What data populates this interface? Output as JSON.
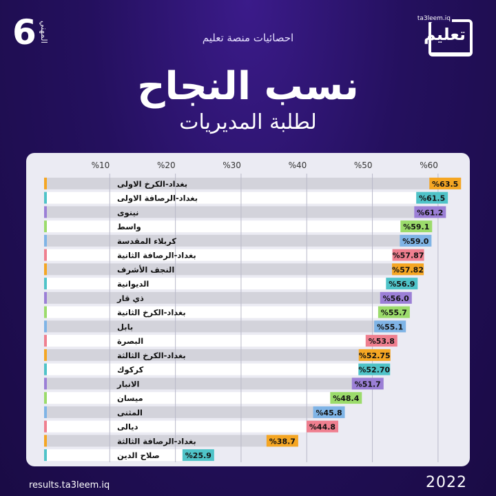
{
  "header": {
    "grade_number": "6",
    "grade_label": "المهني",
    "subtitle": "احصائيات منصة تعليم",
    "logo_text": "تعليم",
    "logo_small": "ta3leem.iq",
    "title": "نسب النجاح",
    "title_line2": "لطلبة المديريات"
  },
  "footer": {
    "url": "results.ta3leem.iq",
    "year": "2022"
  },
  "colors": {
    "background": "#24105e",
    "panel": "#ebebf3",
    "row_dark": "#d3d3db",
    "row_light": "#ffffff",
    "grid": "#b9b9c9"
  },
  "chart_data": {
    "type": "bar",
    "orientation": "horizontal",
    "xlim": [
      0,
      64
    ],
    "ticks": [
      "%10",
      "%20",
      "%30",
      "%40",
      "%50",
      "%60"
    ],
    "tick_values": [
      10,
      20,
      30,
      40,
      50,
      60
    ],
    "grid": true,
    "categories": [
      "بغداد-الكرخ الاولى",
      "بغداد-الرصافة الاولى",
      "نينوى",
      "واسط",
      "كربلاء المقدسة",
      "بغداد-الرصافة الثانية",
      "النجف الأشرف",
      "الديوانية",
      "ذي قار",
      "بغداد-الكرخ الثانية",
      "بابل",
      "البصرة",
      "بغداد-الكرخ الثالثة",
      "كركوك",
      "الانبار",
      "ميسان",
      "المثنى",
      "ديالى",
      "بغداد-الرصافة الثالثة",
      "صلاح الدين"
    ],
    "values": [
      63.5,
      61.5,
      61.2,
      59.1,
      59.0,
      57.87,
      57.82,
      56.9,
      56.0,
      55.7,
      55.1,
      53.8,
      52.75,
      52.7,
      51.7,
      48.4,
      45.8,
      44.8,
      38.7,
      25.9
    ],
    "labels": [
      "%63.5",
      "%61.5",
      "%61.2",
      "%59.1",
      "%59.0",
      "%57.87",
      "%57.82",
      "%56.9",
      "%56.0",
      "%55.7",
      "%55.1",
      "%53.8",
      "%52.75",
      "%52.70",
      "%51.7",
      "%48.4",
      "%45.8",
      "%44.8",
      "%38.7",
      "%25.9"
    ],
    "label_colors": [
      "#f5a623",
      "#4fc3c8",
      "#9b7fd6",
      "#9bdb6b",
      "#7fb4e6",
      "#ef7f8f",
      "#f5a623",
      "#4fc3c8",
      "#9b7fd6",
      "#9bdb6b",
      "#7fb4e6",
      "#ef7f8f",
      "#f5a623",
      "#4fc3c8",
      "#9b7fd6",
      "#9bdb6b",
      "#7fb4e6",
      "#ef7f8f",
      "#f5a623",
      "#4fc3c8"
    ]
  }
}
